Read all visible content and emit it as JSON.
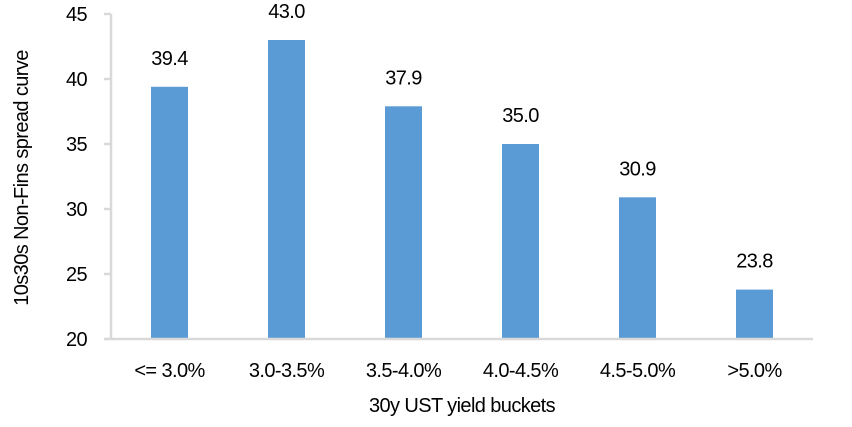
{
  "chart_data": {
    "type": "bar",
    "title": "",
    "xlabel": "30y UST yield buckets",
    "ylabel": "10s30s Non-Fins spread curve",
    "categories": [
      "<= 3.0%",
      "3.0-3.5%",
      "3.5-4.0%",
      "4.0-4.5%",
      "4.5-5.0%",
      ">5.0%"
    ],
    "values": [
      39.4,
      43.0,
      37.9,
      35.0,
      30.9,
      23.8
    ],
    "data_labels": [
      "39.4",
      "43.0",
      "37.9",
      "35.0",
      "30.9",
      "23.8"
    ],
    "ylim": [
      20,
      45
    ],
    "yticks": [
      20,
      25,
      30,
      35,
      40,
      45
    ],
    "grid": false,
    "legend": "none",
    "bar_color": "#5B9BD5",
    "axis_color": "#D9D9D9"
  }
}
